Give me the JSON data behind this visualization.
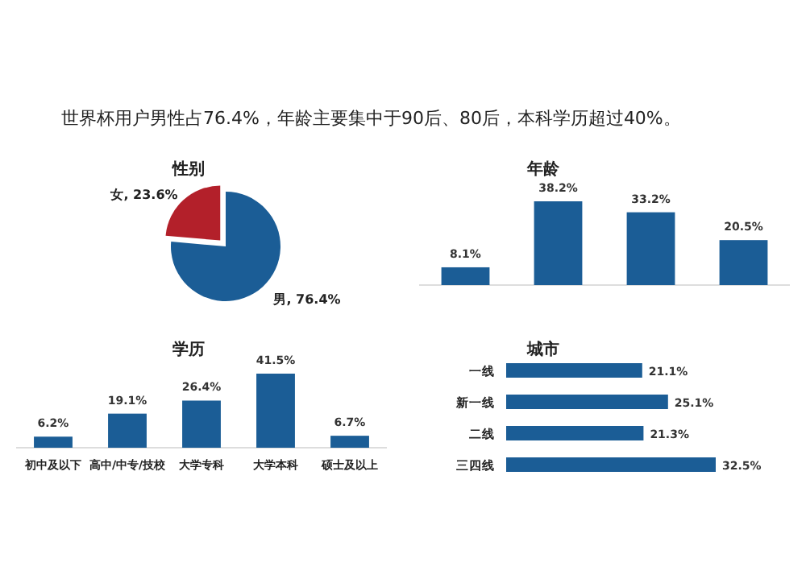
{
  "chart_data": [
    {
      "type": "other",
      "title": "世界杯用户男性占76.4%，年龄主要集中于90后、80后，本科学历超过40%。"
    },
    {
      "type": "pie",
      "title": "性别",
      "categories": [
        "女",
        "男"
      ],
      "values": [
        23.6,
        76.4
      ],
      "colors": [
        "#b3202a",
        "#1b5d96"
      ],
      "value_labels": [
        ", 23.6%",
        ", 76.4%"
      ]
    },
    {
      "type": "bar",
      "title": "年龄",
      "categories": [
        null,
        null,
        null,
        null
      ],
      "values": [
        8.1,
        38.2,
        33.2,
        20.5
      ],
      "color": "#1b5d96",
      "value_labels": [
        "8.1%",
        "38.2%",
        "33.2%",
        "20.5%"
      ]
    },
    {
      "type": "bar",
      "title": "学历",
      "categories": [
        "初中及以下",
        "高中/中专/技校",
        "大学专科",
        "大学本科",
        "硕士及以上"
      ],
      "values": [
        6.2,
        19.1,
        26.4,
        41.5,
        6.7
      ],
      "color": "#1b5d96",
      "value_labels": [
        "6.2%",
        "19.1%",
        "26.4%",
        "41.5%",
        "6.7%"
      ]
    },
    {
      "type": "bar",
      "title": "城市",
      "orientation": "horizontal",
      "categories": [
        "一线",
        "新一线",
        "二线",
        "三四线"
      ],
      "values": [
        21.1,
        25.1,
        21.3,
        32.5
      ],
      "color": "#1b5d96",
      "value_labels": [
        "21.1%",
        "25.1%",
        "21.3%",
        "32.5%"
      ]
    }
  ]
}
